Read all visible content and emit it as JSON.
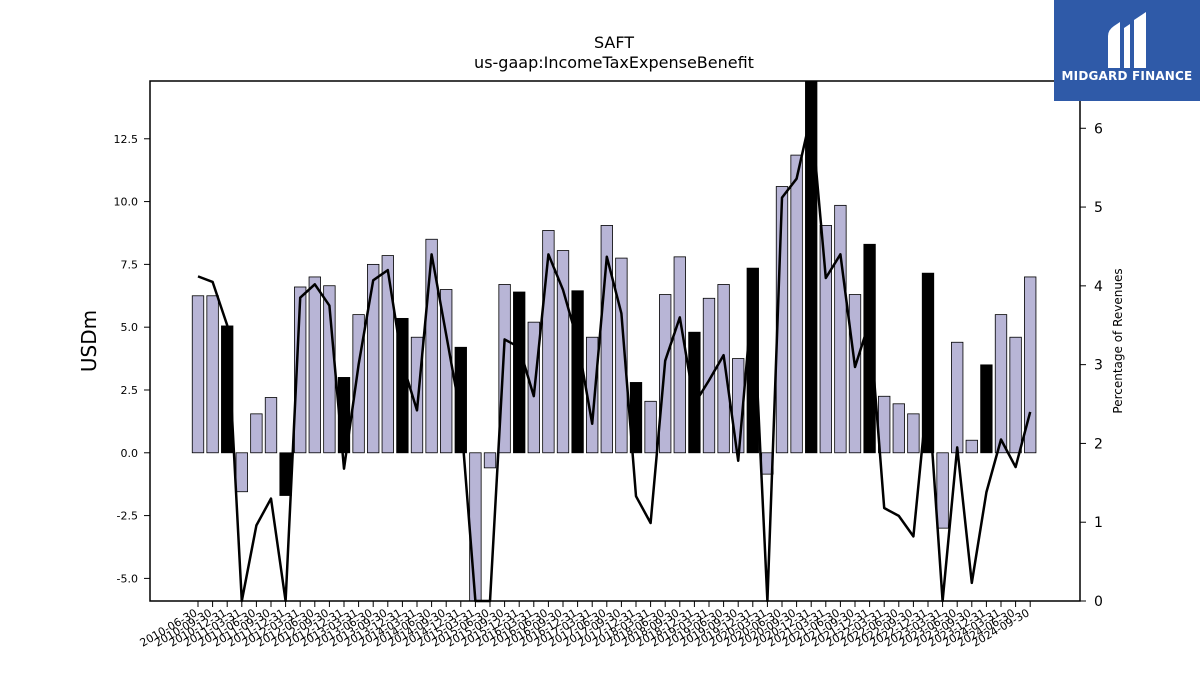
{
  "brand": {
    "name": "MIDGARD FINANCE",
    "icon": "midgard-logo-icon"
  },
  "colors": {
    "bar_default": "#b8b5d6",
    "bar_highlight": "#000000",
    "line": "#000000",
    "brand_bg": "#2f5aa8"
  },
  "chart_data": {
    "type": "bar",
    "title": "SAFT",
    "subtitle": "us-gaap:IncomeTaxExpenseBenefit",
    "ylabel": "USDm",
    "y2label": "Percentage of Revenues",
    "ylim": [
      -5.9,
      14.8
    ],
    "y2lim": [
      0,
      6.6
    ],
    "yticks": [
      -5.0,
      -2.5,
      0.0,
      2.5,
      5.0,
      7.5,
      10.0,
      12.5
    ],
    "y2ticks": [
      0,
      1,
      2,
      3,
      4,
      5,
      6
    ],
    "grid": false,
    "categories": [
      "2010-06-30",
      "2010-09-30",
      "2010-12-31",
      "2011-03-31",
      "2011-06-30",
      "2011-09-30",
      "2011-12-31",
      "2012-03-31",
      "2012-06-30",
      "2012-09-30",
      "2012-12-31",
      "2013-03-31",
      "2013-06-30",
      "2013-09-30",
      "2013-12-31",
      "2014-03-31",
      "2014-06-30",
      "2014-09-30",
      "2014-12-31",
      "2015-03-31",
      "2015-06-30",
      "2015-09-30",
      "2015-12-31",
      "2016-03-31",
      "2016-06-30",
      "2016-09-30",
      "2016-12-31",
      "2017-03-31",
      "2017-06-30",
      "2017-09-30",
      "2017-12-31",
      "2018-03-31",
      "2018-06-30",
      "2018-09-30",
      "2018-12-31",
      "2019-03-31",
      "2019-06-30",
      "2019-09-30",
      "2019-12-31",
      "2020-03-31",
      "2020-06-30",
      "2020-09-30",
      "2020-12-31",
      "2021-03-31",
      "2021-06-30",
      "2021-09-30",
      "2021-12-31",
      "2022-03-31",
      "2022-06-30",
      "2022-09-30",
      "2022-12-31",
      "2023-03-31",
      "2023-06-30",
      "2023-09-30",
      "2023-12-31",
      "2024-03-31",
      "2024-06-30",
      "2024-09-30"
    ],
    "series": [
      {
        "type": "bar",
        "axis": "left",
        "values": [
          6.25,
          6.25,
          5.05,
          -1.55,
          1.55,
          2.2,
          -1.7,
          6.6,
          7.0,
          6.65,
          3.0,
          5.5,
          7.5,
          7.85,
          5.35,
          4.6,
          8.5,
          6.5,
          4.2,
          -6.0,
          -0.6,
          6.7,
          6.4,
          5.2,
          8.85,
          8.05,
          6.45,
          4.6,
          9.05,
          7.75,
          2.8,
          2.05,
          6.3,
          7.8,
          4.8,
          6.15,
          6.7,
          3.75,
          7.35,
          -0.85,
          10.6,
          11.85,
          14.8,
          9.05,
          9.85,
          6.3,
          8.3,
          2.25,
          1.95,
          1.55,
          7.15,
          -3.0,
          4.4,
          0.5,
          3.5,
          5.5,
          4.6,
          7.0
        ],
        "highlight": [
          false,
          false,
          true,
          false,
          false,
          false,
          true,
          false,
          false,
          false,
          true,
          false,
          false,
          false,
          true,
          false,
          false,
          false,
          true,
          false,
          false,
          false,
          true,
          false,
          false,
          false,
          true,
          false,
          false,
          false,
          true,
          false,
          false,
          false,
          true,
          false,
          false,
          false,
          true,
          false,
          false,
          false,
          true,
          false,
          false,
          false,
          true,
          false,
          false,
          false,
          true,
          false,
          false,
          false,
          true,
          false,
          false,
          false
        ]
      },
      {
        "type": "line",
        "axis": "right",
        "values": [
          4.12,
          4.05,
          3.5,
          -0.3,
          0.96,
          1.3,
          -0.3,
          3.85,
          4.02,
          3.75,
          1.68,
          3.0,
          4.07,
          4.2,
          3.02,
          2.42,
          4.4,
          3.38,
          2.35,
          -0.3,
          -0.3,
          3.32,
          3.22,
          2.6,
          4.4,
          3.95,
          3.3,
          2.25,
          4.37,
          3.65,
          1.33,
          0.99,
          3.05,
          3.6,
          2.5,
          2.8,
          3.12,
          1.78,
          3.92,
          -0.3,
          5.12,
          5.36,
          6.18,
          4.1,
          4.4,
          2.97,
          3.55,
          1.18,
          1.08,
          0.82,
          2.7,
          -0.3,
          1.95,
          0.23,
          1.38,
          2.05,
          1.7,
          2.4
        ]
      }
    ]
  }
}
